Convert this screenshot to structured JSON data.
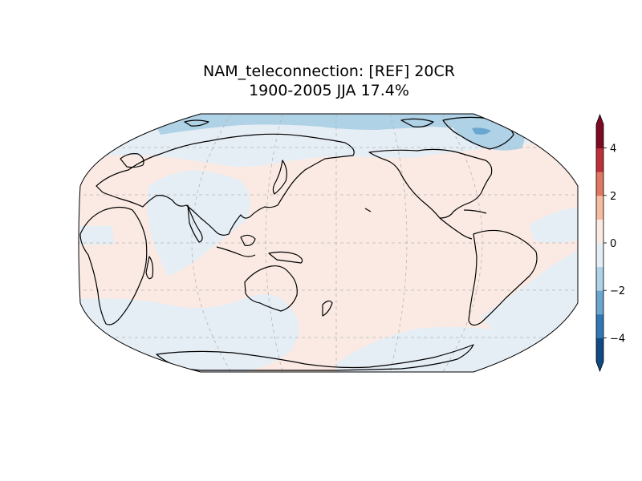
{
  "title": {
    "line1": "NAM_teleconnection: [REF] 20CR",
    "line2": "1900-2005 JJA 17.4%"
  },
  "map": {
    "projection": "Robinson",
    "central_longitude": 180,
    "gridlines": true,
    "coastlines": true
  },
  "colorbar": {
    "colormap": "RdBu_r",
    "orientation": "vertical",
    "extend": "both",
    "levels": [
      -5,
      -4,
      -3,
      -2,
      -1,
      0,
      1,
      2,
      3,
      4,
      5
    ],
    "colors": [
      "#0f4a85",
      "#2f78b4",
      "#6aa7d0",
      "#afd2e6",
      "#e5edf5",
      "#faeae3",
      "#f6bca2",
      "#df7762",
      "#bd3039",
      "#7e0a23"
    ],
    "ticks": [
      "4",
      "2",
      "0",
      "−2",
      "−4"
    ],
    "tick_values": [
      4,
      2,
      0,
      -2,
      -4
    ]
  },
  "field_colors": {
    "positive_weak": "#faeae3",
    "negative_weak": "#e5edf5",
    "negative_moderate": "#afd2e6",
    "negative_strong": "#6aa7d0"
  }
}
